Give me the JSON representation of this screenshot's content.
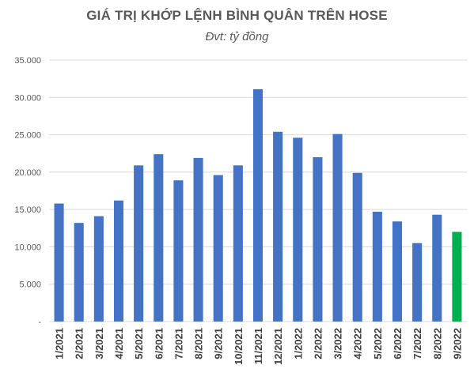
{
  "chart_data": {
    "type": "bar",
    "title": "GIÁ TRỊ KHỚP LỆNH BÌNH QUÂN TRÊN HOSE",
    "subtitle": "Đvt: tỷ đồng",
    "xlabel": "",
    "ylabel": "",
    "ylim": [
      0,
      35000
    ],
    "grid": true,
    "legend": "none",
    "y_ticks": [
      0,
      5000,
      10000,
      15000,
      20000,
      25000,
      30000,
      35000
    ],
    "y_tick_labels": [
      "-",
      "5.000",
      "10.000",
      "15.000",
      "20.000",
      "25.000",
      "30.000",
      "35.000"
    ],
    "categories": [
      "1/2021",
      "2/2021",
      "3/2021",
      "4/2021",
      "5/2021",
      "6/2021",
      "7/2021",
      "8/2021",
      "9/2021",
      "10/2021",
      "11/2021",
      "12/2021",
      "1/2022",
      "2/2022",
      "3/2022",
      "4/2022",
      "5/2022",
      "6/2022",
      "7/2022",
      "8/2022",
      "9/2022"
    ],
    "values": [
      15800,
      13200,
      14100,
      16200,
      20900,
      22400,
      18900,
      21900,
      19600,
      20900,
      31100,
      25400,
      24600,
      22000,
      25100,
      19900,
      14700,
      13400,
      10500,
      14300,
      12000
    ],
    "bar_color": "#4472c4",
    "highlight_color": "#00b050",
    "highlight_index": 20
  }
}
